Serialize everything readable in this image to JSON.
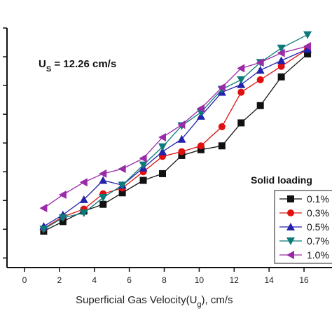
{
  "chart_data": {
    "type": "line",
    "xlabel_main": "Superficial Gas Velocity(U",
    "xlabel_sub": "g",
    "xlabel_tail": "), cm/s",
    "annotation": {
      "main": "U",
      "sub": "S",
      "rest": " = 12.26 cm/s"
    },
    "legend_title": "Solid loading",
    "xlim": [
      -1,
      17
    ],
    "ylim": [
      -1,
      24
    ],
    "xticks": [
      0,
      2,
      4,
      6,
      8,
      10,
      12,
      14,
      16
    ],
    "yticks": [
      0,
      3,
      6,
      9,
      12,
      15,
      18,
      21,
      24
    ],
    "x": [
      1.1,
      2.2,
      3.4,
      4.5,
      5.6,
      6.8,
      7.9,
      9.0,
      10.1,
      11.3,
      12.4,
      13.5,
      14.7,
      16.2
    ],
    "series": [
      {
        "name": "0.1%",
        "color": "#111111",
        "marker": "square",
        "values": [
          2.8,
          3.8,
          4.9,
          5.6,
          6.8,
          8.1,
          8.8,
          10.7,
          11.3,
          11.7,
          14.1,
          15.9,
          18.9,
          21.3
        ]
      },
      {
        "name": "0.3%",
        "color": "#e01010",
        "marker": "circle",
        "values": [
          3.1,
          4.3,
          5.1,
          6.7,
          7.3,
          9.0,
          10.6,
          11.1,
          11.7,
          13.7,
          17.3,
          18.6,
          20.0,
          21.8
        ]
      },
      {
        "name": "0.5%",
        "color": "#2222aa",
        "marker": "triangle-up",
        "values": [
          3.3,
          4.5,
          6.1,
          8.1,
          7.6,
          9.4,
          11.1,
          12.4,
          14.8,
          17.3,
          18.1,
          19.6,
          20.6,
          21.8
        ]
      },
      {
        "name": "0.7%",
        "color": "#0c7a7a",
        "marker": "triangle-down",
        "values": [
          3.0,
          4.2,
          4.7,
          6.3,
          7.6,
          9.7,
          11.6,
          13.8,
          15.2,
          17.6,
          18.6,
          20.4,
          21.9,
          23.3
        ]
      },
      {
        "name": "1.0%",
        "color": "#9a2aa8",
        "marker": "triangle-left",
        "values": [
          5.2,
          6.6,
          7.9,
          8.8,
          9.3,
          10.4,
          12.6,
          13.9,
          15.6,
          17.8,
          19.8,
          20.4,
          21.4,
          22.1
        ]
      }
    ]
  }
}
